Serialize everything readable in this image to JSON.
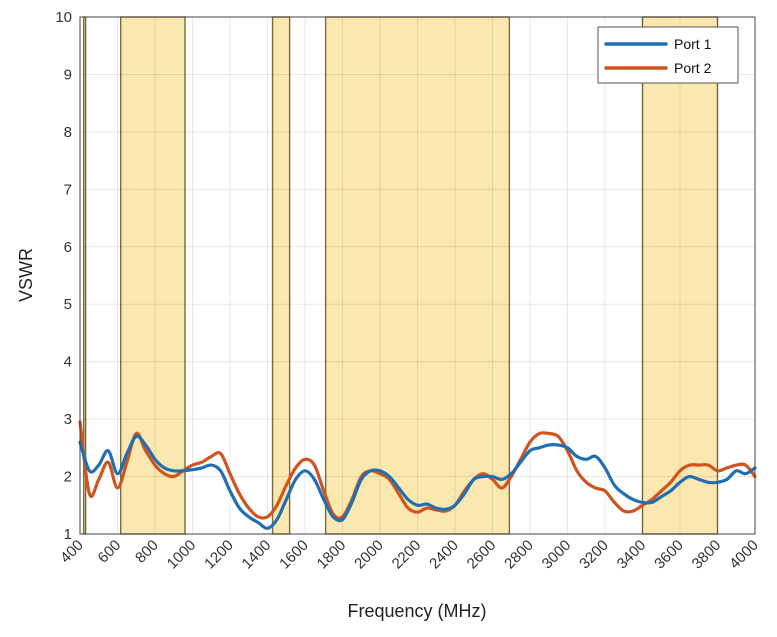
{
  "chart_data": {
    "type": "line",
    "xlabel": "Frequency (MHz)",
    "ylabel": "VSWR",
    "xlim": [
      400,
      4000
    ],
    "ylim": [
      1,
      10
    ],
    "x_ticks": [
      "400",
      "600",
      "800",
      "1000",
      "1200",
      "1400",
      "1600",
      "1800",
      "2000",
      "2200",
      "2400",
      "2600",
      "2800",
      "3000",
      "3200",
      "3400",
      "3600",
      "3800",
      "4000"
    ],
    "y_ticks": [
      "1",
      "2",
      "3",
      "4",
      "5",
      "6",
      "7",
      "8",
      "9",
      "10"
    ],
    "grid": true,
    "legend_position": "top-right",
    "shaded_bands": [
      [
        420,
        430
      ],
      [
        617,
        960
      ],
      [
        1427,
        1518
      ],
      [
        1710,
        2690
      ],
      [
        3400,
        3800
      ]
    ],
    "colors": {
      "band_fill": "#fbe7b0",
      "band_edge": "#7a6a40",
      "port1": "#1f6fb2",
      "port2": "#d0541f"
    },
    "series": [
      {
        "name": "Port 1",
        "x": [
          400,
          450,
          500,
          550,
          600,
          650,
          700,
          750,
          800,
          850,
          900,
          950,
          1000,
          1050,
          1100,
          1150,
          1200,
          1250,
          1300,
          1350,
          1400,
          1450,
          1500,
          1550,
          1600,
          1650,
          1700,
          1750,
          1800,
          1850,
          1900,
          1950,
          2000,
          2050,
          2100,
          2150,
          2200,
          2250,
          2300,
          2350,
          2400,
          2450,
          2500,
          2550,
          2600,
          2650,
          2700,
          2750,
          2800,
          2850,
          2900,
          2950,
          3000,
          3050,
          3100,
          3150,
          3200,
          3250,
          3300,
          3350,
          3400,
          3450,
          3500,
          3550,
          3600,
          3650,
          3700,
          3750,
          3800,
          3850,
          3900,
          3950,
          4000
        ],
        "values": [
          2.6,
          2.1,
          2.2,
          2.45,
          2.05,
          2.4,
          2.7,
          2.55,
          2.3,
          2.15,
          2.1,
          2.1,
          2.12,
          2.15,
          2.2,
          2.1,
          1.75,
          1.45,
          1.3,
          1.2,
          1.1,
          1.25,
          1.6,
          1.95,
          2.1,
          1.95,
          1.6,
          1.3,
          1.25,
          1.55,
          1.95,
          2.1,
          2.1,
          2.0,
          1.8,
          1.6,
          1.5,
          1.52,
          1.45,
          1.43,
          1.5,
          1.7,
          1.95,
          2.0,
          2.0,
          1.95,
          2.05,
          2.25,
          2.45,
          2.5,
          2.55,
          2.55,
          2.5,
          2.35,
          2.3,
          2.35,
          2.15,
          1.85,
          1.7,
          1.6,
          1.55,
          1.55,
          1.65,
          1.75,
          1.9,
          2.0,
          1.95,
          1.9,
          1.9,
          1.95,
          2.1,
          2.05,
          2.15
        ]
      },
      {
        "name": "Port 2",
        "x": [
          400,
          450,
          500,
          550,
          600,
          650,
          700,
          750,
          800,
          850,
          900,
          950,
          1000,
          1050,
          1100,
          1150,
          1200,
          1250,
          1300,
          1350,
          1400,
          1450,
          1500,
          1550,
          1600,
          1650,
          1700,
          1750,
          1800,
          1850,
          1900,
          1950,
          2000,
          2050,
          2100,
          2150,
          2200,
          2250,
          2300,
          2350,
          2400,
          2450,
          2500,
          2550,
          2600,
          2650,
          2700,
          2750,
          2800,
          2850,
          2900,
          2950,
          3000,
          3050,
          3100,
          3150,
          3200,
          3250,
          3300,
          3350,
          3400,
          3450,
          3500,
          3550,
          3600,
          3650,
          3700,
          3750,
          3800,
          3850,
          3900,
          3950,
          4000
        ],
        "values": [
          2.95,
          1.7,
          1.95,
          2.25,
          1.8,
          2.25,
          2.75,
          2.45,
          2.2,
          2.05,
          2.0,
          2.1,
          2.2,
          2.25,
          2.35,
          2.4,
          2.05,
          1.7,
          1.45,
          1.3,
          1.3,
          1.5,
          1.85,
          2.15,
          2.3,
          2.2,
          1.75,
          1.35,
          1.3,
          1.6,
          2.0,
          2.1,
          2.05,
          1.95,
          1.7,
          1.45,
          1.38,
          1.45,
          1.42,
          1.4,
          1.5,
          1.75,
          1.95,
          2.05,
          1.95,
          1.8,
          2.0,
          2.3,
          2.6,
          2.75,
          2.75,
          2.7,
          2.45,
          2.1,
          1.9,
          1.8,
          1.75,
          1.55,
          1.4,
          1.4,
          1.5,
          1.6,
          1.75,
          1.9,
          2.1,
          2.2,
          2.2,
          2.2,
          2.1,
          2.15,
          2.2,
          2.2,
          2.0
        ]
      }
    ]
  }
}
